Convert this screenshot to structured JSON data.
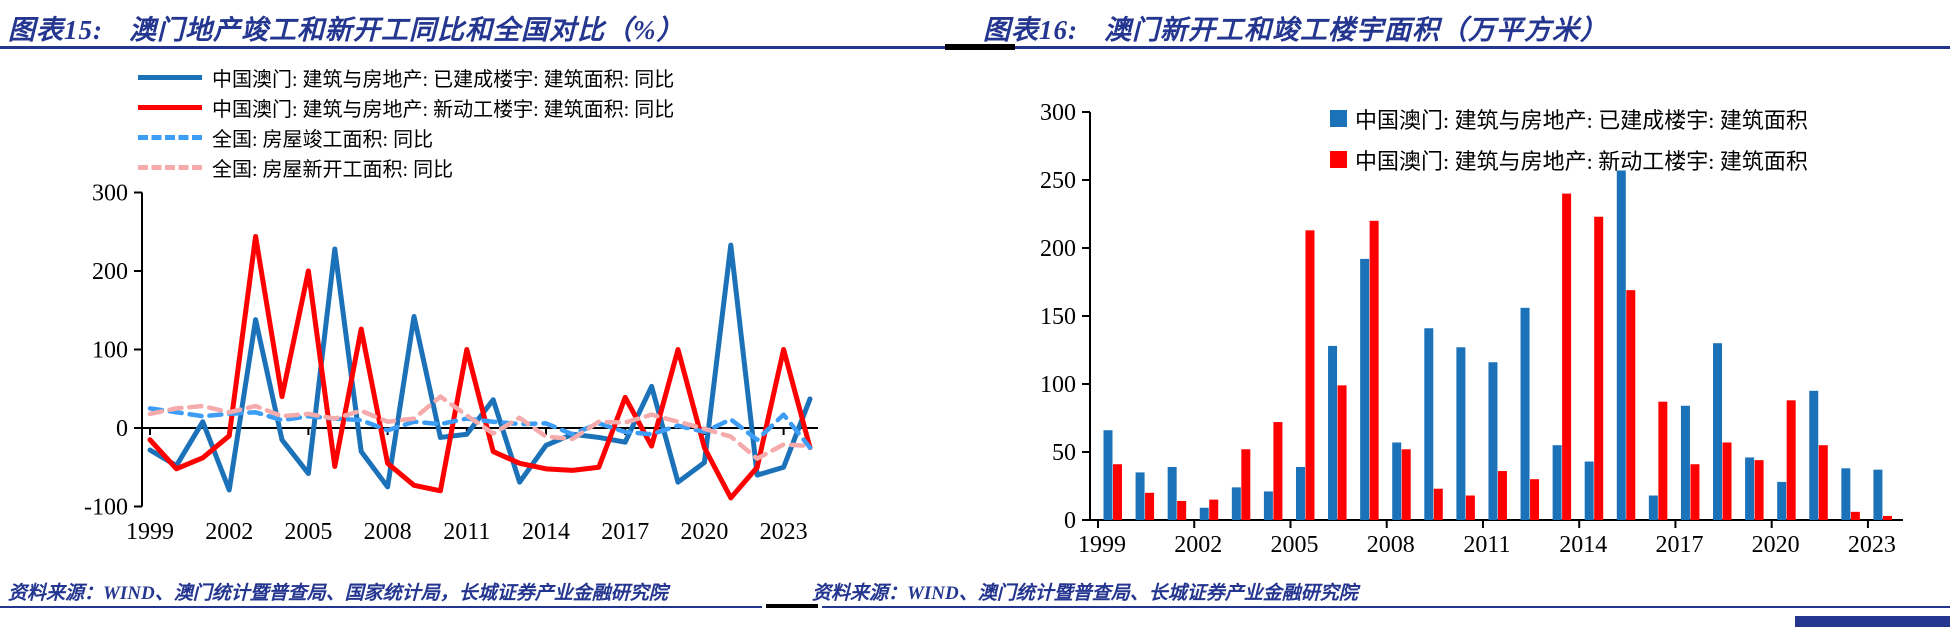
{
  "colors": {
    "title_navy": "#24368F",
    "rule_navy": "#24368F",
    "macau_blue": "#1C72B8",
    "macau_red": "#FF0000",
    "national_blue": "#3D9DF5",
    "national_pink": "#F5ABAB",
    "axis_black": "#000000"
  },
  "panels": {
    "left": {
      "title_prefix": "图表15:",
      "title": "澳门地产竣工和新开工同比和全国对比（%）",
      "source": "资料来源：WIND、澳门统计暨普查局、国家统计局，长城证券产业金融研究院"
    },
    "right": {
      "title_prefix": "图表16:",
      "title": "澳门新开工和竣工楼宇面积（万平方米）",
      "source": "资料来源：WIND、澳门统计暨普查局、长城证券产业金融研究院"
    }
  },
  "chart_data": [
    {
      "type": "line",
      "title": "澳门地产竣工和新开工同比和全国对比（%）",
      "x": [
        1999,
        2000,
        2001,
        2002,
        2003,
        2004,
        2005,
        2006,
        2007,
        2008,
        2009,
        2010,
        2011,
        2012,
        2013,
        2014,
        2015,
        2016,
        2017,
        2018,
        2019,
        2020,
        2021,
        2022,
        2023,
        2024
      ],
      "xtick_labels": [
        "1999",
        "2002",
        "2005",
        "2008",
        "2011",
        "2014",
        "2017",
        "2020",
        "2023"
      ],
      "ytick_labels": [
        "300",
        "200",
        "100",
        "0",
        "-100"
      ],
      "yticks": [
        300,
        200,
        100,
        0,
        -100
      ],
      "ylim": [
        -100,
        300
      ],
      "grid": false,
      "legend_position": "top-left",
      "series": [
        {
          "name": "中国澳门: 建筑与房地产: 已建成楼宇: 建筑面积: 同比",
          "style": "solid",
          "color": "#1C72B8",
          "values": [
            -28,
            -48,
            8,
            -79,
            138,
            -15,
            -58,
            228,
            -30,
            -75,
            142,
            -12,
            -8,
            36,
            -69,
            -22,
            -8,
            -12,
            -18,
            53,
            -69,
            -44,
            233,
            -60,
            -50,
            37
          ]
        },
        {
          "name": "中国澳门: 建筑与房地产: 新动工楼宇: 建筑面积: 同比",
          "style": "solid",
          "color": "#FF0000",
          "values": [
            -15,
            -52,
            -38,
            -10,
            244,
            40,
            200,
            -49,
            126,
            -45,
            -73,
            -80,
            100,
            -30,
            -45,
            -52,
            -54,
            -50,
            39,
            -23,
            100,
            -25,
            -89,
            -50,
            100,
            -25
          ]
        },
        {
          "name": "全国: 房屋竣工面积: 同比",
          "style": "dashed",
          "color": "#3D9DF5",
          "values": [
            25,
            20,
            15,
            18,
            20,
            10,
            15,
            12,
            10,
            -3,
            8,
            5,
            12,
            8,
            5,
            6,
            -8,
            6,
            -5,
            -8,
            3,
            -5,
            11,
            -15,
            17,
            -25
          ]
        },
        {
          "name": "全国: 房屋新开工面积: 同比",
          "style": "dashed",
          "color": "#F5ABAB",
          "values": [
            18,
            25,
            28,
            20,
            28,
            15,
            18,
            12,
            22,
            8,
            12,
            40,
            16,
            -7,
            13,
            -11,
            -14,
            8,
            7,
            17,
            8,
            -1,
            -11,
            -39,
            -21,
            -23
          ]
        }
      ]
    },
    {
      "type": "bar",
      "title": "澳门新开工和竣工楼宇面积（万平方米）",
      "categories": [
        1999,
        2000,
        2001,
        2002,
        2003,
        2004,
        2005,
        2006,
        2007,
        2008,
        2009,
        2010,
        2011,
        2012,
        2013,
        2014,
        2015,
        2016,
        2017,
        2018,
        2019,
        2020,
        2021,
        2022,
        2023
      ],
      "xtick_labels": [
        "1999",
        "2002",
        "2005",
        "2008",
        "2011",
        "2014",
        "2017",
        "2020",
        "2023"
      ],
      "ytick_labels": [
        "0",
        "50",
        "100",
        "150",
        "200",
        "250",
        "300"
      ],
      "yticks": [
        0,
        50,
        100,
        150,
        200,
        250,
        300
      ],
      "ylim": [
        0,
        300
      ],
      "grid": false,
      "legend_position": "top-center",
      "series": [
        {
          "name": "中国澳门: 建筑与房地产: 已建成楼宇: 建筑面积",
          "color": "#1C72B8",
          "values": [
            66,
            35,
            39,
            9,
            24,
            21,
            39,
            128,
            192,
            57,
            141,
            127,
            116,
            156,
            55,
            43,
            257,
            18,
            84,
            130,
            46,
            28,
            95,
            38,
            37
          ]
        },
        {
          "name": "中国澳门: 建筑与房地产: 新动工楼宇: 建筑面积",
          "color": "#FF0000",
          "values": [
            41,
            20,
            14,
            15,
            52,
            72,
            213,
            99,
            220,
            52,
            23,
            18,
            36,
            30,
            240,
            223,
            169,
            87,
            41,
            57,
            44,
            88,
            55,
            6,
            3
          ]
        }
      ]
    }
  ]
}
